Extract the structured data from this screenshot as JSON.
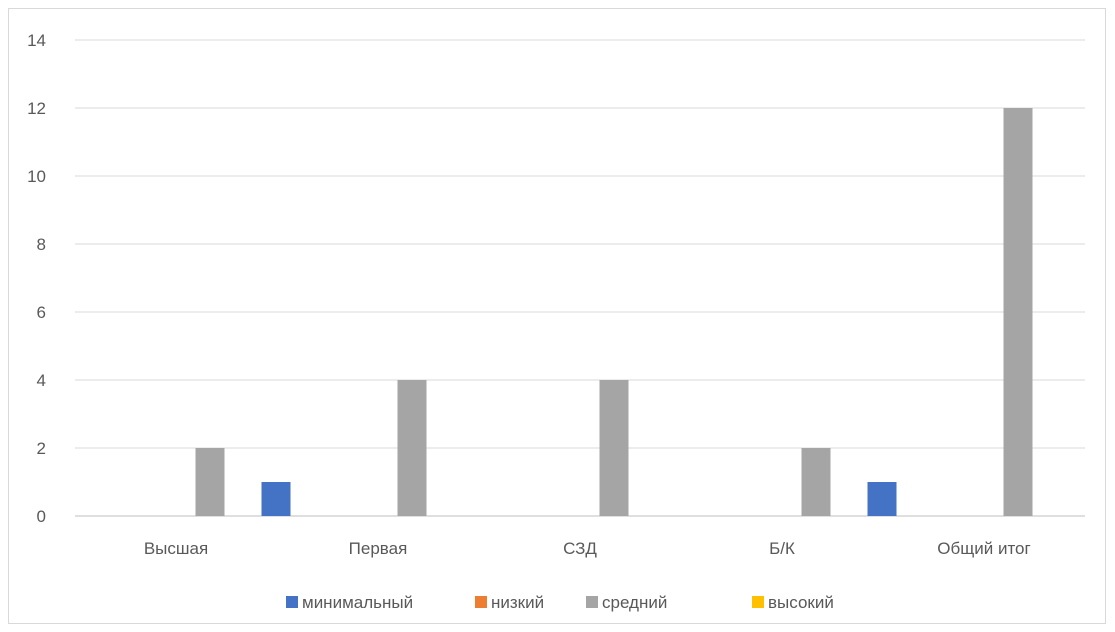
{
  "chart_data": {
    "type": "bar",
    "title": "",
    "xlabel": "",
    "ylabel": "",
    "categories": [
      "Высшая",
      "Первая",
      "СЗД",
      "Б/К",
      "Общий итог"
    ],
    "series": [
      {
        "name": "минимальный",
        "color": "#4472c4",
        "values": [
          0,
          1,
          0,
          0,
          1
        ]
      },
      {
        "name": "низкий",
        "color": "#ed7d31",
        "values": [
          0,
          0,
          0,
          0,
          0
        ]
      },
      {
        "name": "средний",
        "color": "#a5a5a5",
        "values": [
          2,
          4,
          4,
          2,
          12
        ]
      },
      {
        "name": "высокий",
        "color": "#ffc000",
        "values": [
          0,
          0,
          0,
          0,
          0
        ]
      }
    ],
    "ylim": [
      0,
      14
    ],
    "yticks": [
      0,
      2,
      4,
      6,
      8,
      10,
      12,
      14
    ],
    "grid": true,
    "legend_position": "bottom"
  }
}
